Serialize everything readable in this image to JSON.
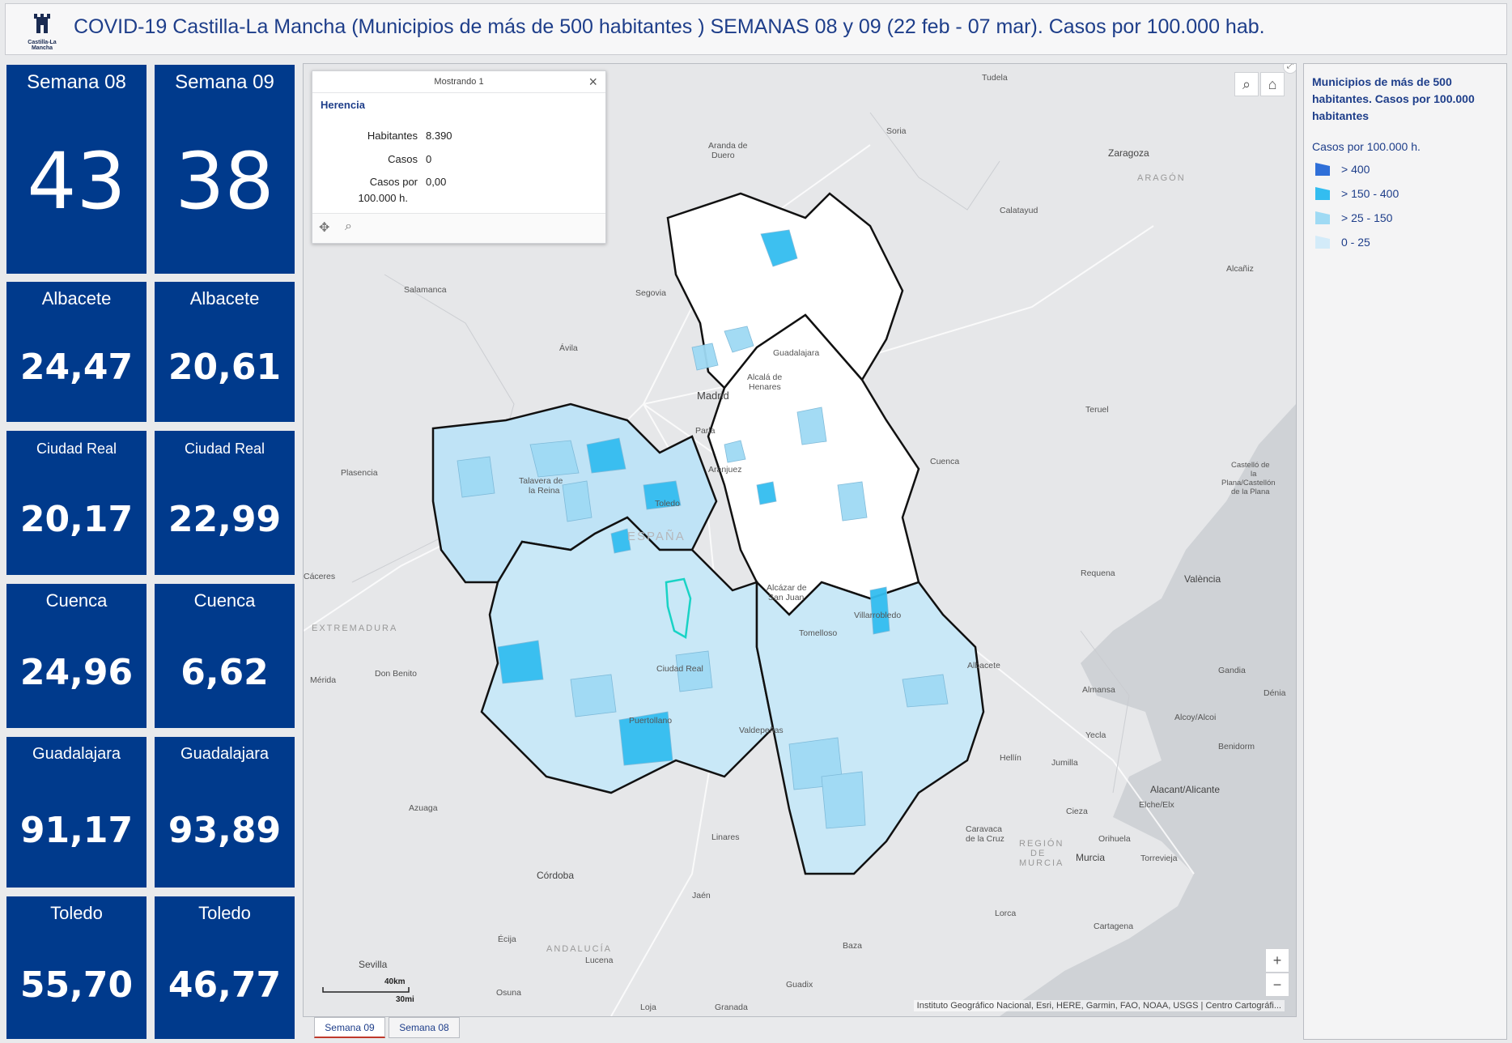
{
  "header": {
    "logo_text": "Castilla-La Mancha",
    "title": "COVID-19 Castilla-La Mancha (Municipios de más de 500 habitantes ) SEMANAS 08 y 09 (22 feb - 07 mar). Casos por 100.000 hab."
  },
  "tiles": {
    "week08_label": "Semana 08",
    "week08_value": "43",
    "week09_label": "Semana 09",
    "week09_value": "38",
    "rows": [
      {
        "province": "Albacete",
        "w08": "24,47",
        "w09": "20,61"
      },
      {
        "province": "Ciudad Real",
        "w08": "20,17",
        "w09": "22,99"
      },
      {
        "province": "Cuenca",
        "w08": "24,96",
        "w09": "6,62"
      },
      {
        "province": "Guadalajara",
        "w08": "91,17",
        "w09": "93,89"
      },
      {
        "province": "Toledo",
        "w08": "55,70",
        "w09": "46,77"
      }
    ]
  },
  "popup": {
    "count": "Mostrando 1",
    "name": "Herencia",
    "fields": [
      {
        "key": "Habitantes",
        "value": "8.390"
      },
      {
        "key": "Casos",
        "value": "0"
      },
      {
        "key": "Casos por",
        "key2": "100.000 h.",
        "value": "0,00"
      }
    ]
  },
  "legend": {
    "title": "Municipios de más de 500 habitantes. Casos por 100.000 habitantes",
    "subtitle": "Casos por 100.000 h.",
    "items": [
      {
        "label": "> 400",
        "color": "#2f6fd8"
      },
      {
        "label": "> 150 - 400",
        "color": "#33bdf0"
      },
      {
        "label": "> 25 - 150",
        "color": "#9fdaf4"
      },
      {
        "label": "0 - 25",
        "color": "#d3ebf9"
      }
    ]
  },
  "map": {
    "attribution": "Instituto Geográfico Nacional, Esri, HERE, Garmin, FAO, NOAA, USGS | Centro Cartográfi...",
    "scale_km": "40km",
    "scale_mi": "30mi",
    "cities": [
      "Tudela",
      "Soria",
      "Aranda de",
      "Duero",
      "Zaragoza",
      "ARAGÓN",
      "Calatayud",
      "Alcañiz",
      "Salamanca",
      "Segovia",
      "Ávila",
      "Guadalajara",
      "Alcalá de",
      "Henares",
      "Madrid",
      "Teruel",
      "Parla",
      "Aranjuez",
      "Talavera de",
      "la Reina",
      "Toledo",
      "Plasencia",
      "Cuenca",
      "Castelló de",
      "la",
      "Plana/Castellón",
      "de la Plana",
      "ESPAÑA",
      "Cáceres",
      "Requena",
      "València",
      "EXTREMADURA",
      "Alcázar de",
      "San Juan",
      "Villarrobledo",
      "Tomelloso",
      "Mérida",
      "Don Benito",
      "Ciudad Real",
      "Albacete",
      "Almansa",
      "Gandia",
      "Dénia",
      "Puertollano",
      "Valdepeñas",
      "Yecla",
      "Alcoy/Alcoi",
      "Benidorm",
      "Hellín",
      "Jumilla",
      "Alacant/Alicante",
      "Elche/Elx",
      "Azuaga",
      "Cieza",
      "Caravaca",
      "de la Cruz",
      "REGIÓN",
      "DE",
      "MURCIA",
      "Orihuela",
      "Torrevieja",
      "Linares",
      "Murcia",
      "Córdoba",
      "Jaén",
      "Lorca",
      "Cartagena",
      "Écija",
      "ANDALUCÍA",
      "Lucena",
      "Baza",
      "Sevilla",
      "Osuna",
      "Loja",
      "Granada",
      "Guadix"
    ]
  },
  "tabs": [
    "Semana 09",
    "Semana 08"
  ]
}
